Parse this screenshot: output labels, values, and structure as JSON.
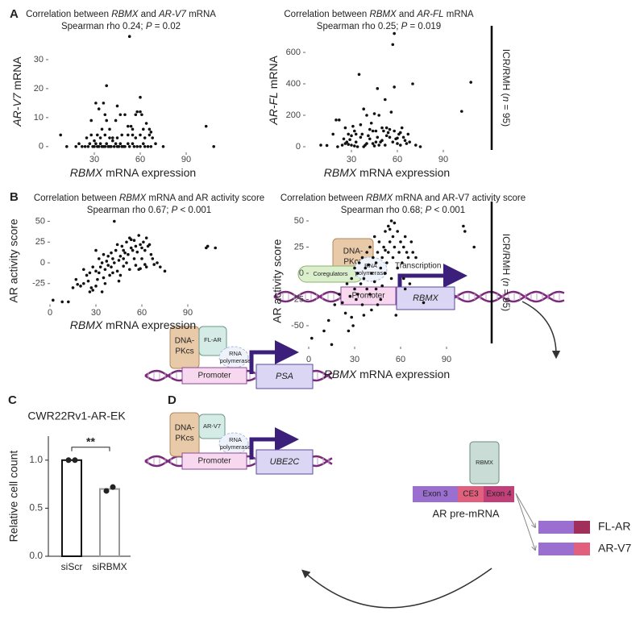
{
  "panel_labels": [
    "A",
    "B",
    "C",
    "D"
  ],
  "annotations": [
    {
      "text": "ICR/RMH (n = 95)",
      "italic": [
        "n"
      ]
    },
    {
      "text": "ICR/RMH (n = 95)",
      "italic": [
        "n"
      ]
    }
  ],
  "chart_data": [
    {
      "type": "scatter",
      "title": "Correlation between RBMX and AR-V7 mRNA",
      "title_italic": [
        "RBMX",
        "AR-V7"
      ],
      "subtitle": "Spearman rho 0.24; P = 0.02",
      "subtitle_italic": [
        "P"
      ],
      "xlabel": "RBMX mRNA expression",
      "xlabel_italic": [
        "RBMX"
      ],
      "ylabel": "AR-V7 mRNA",
      "ylabel_italic": [
        "AR-V7"
      ],
      "color": "#111111",
      "x": [
        8,
        12,
        18,
        20,
        22,
        24,
        26,
        27,
        29,
        30,
        31,
        32,
        33,
        34,
        35,
        36,
        37,
        38,
        39,
        40,
        41,
        42,
        43,
        44,
        45,
        46,
        47,
        48,
        49,
        50,
        52,
        53,
        55,
        56,
        58,
        60,
        62,
        63,
        65,
        67,
        70,
        75,
        108,
        103,
        25,
        28,
        30,
        32,
        34,
        37,
        40,
        42,
        45,
        48,
        52,
        55,
        57,
        60,
        63,
        66,
        68,
        31,
        33,
        36,
        38,
        37,
        44,
        45,
        50,
        52,
        54,
        57,
        58,
        60,
        61,
        62,
        64,
        66,
        35,
        28,
        38,
        47,
        60,
        55,
        40,
        67,
        53
      ],
      "values": [
        4,
        0,
        0,
        1,
        0,
        0,
        0,
        1,
        0,
        0,
        1,
        0,
        0,
        1,
        0,
        0,
        0,
        1,
        0,
        0,
        0,
        2,
        0,
        1,
        0,
        0,
        1,
        0,
        0,
        0,
        1,
        0,
        1,
        0,
        0,
        0,
        1,
        0,
        0,
        0,
        1,
        0,
        0,
        7,
        3,
        4,
        2,
        4,
        3,
        4,
        3,
        3,
        3,
        4,
        4,
        4,
        3,
        4,
        3,
        4,
        3,
        15,
        13,
        15,
        9,
        11,
        9,
        14,
        11,
        7,
        7,
        11,
        12,
        12,
        11,
        6,
        8,
        6,
        6,
        9,
        21,
        11,
        17,
        6,
        6,
        5,
        38
      ],
      "xlim": [
        0,
        110
      ],
      "ylim": [
        -2,
        40
      ],
      "xticks": [
        30,
        60,
        90
      ],
      "yticks": [
        0,
        10,
        20,
        30
      ]
    },
    {
      "type": "scatter",
      "title": "Correlation between RBMX and AR-FL mRNA",
      "title_italic": [
        "RBMX",
        "AR-FL"
      ],
      "subtitle": "Spearman rho 0.25; P = 0.019",
      "subtitle_italic": [
        "P"
      ],
      "xlabel": "RBMX mRNA expression",
      "xlabel_italic": [
        "RBMX"
      ],
      "ylabel": "AR-FL mRNA",
      "ylabel_italic": [
        "AR-FL"
      ],
      "color": "#111111",
      "x": [
        10,
        14,
        18,
        20,
        21,
        22,
        24,
        25,
        26,
        27,
        28,
        29,
        30,
        31,
        32,
        33,
        34,
        35,
        36,
        37,
        38,
        39,
        40,
        41,
        42,
        43,
        44,
        45,
        46,
        47,
        48,
        49,
        50,
        51,
        52,
        53,
        54,
        55,
        56,
        57,
        58,
        59,
        60,
        61,
        62,
        63,
        64,
        65,
        66,
        67,
        68,
        70,
        72,
        75,
        102,
        108,
        58,
        57,
        28,
        33,
        36,
        40,
        42,
        44,
        46,
        48,
        50,
        55,
        60,
        62,
        38,
        32,
        45,
        52,
        58,
        26,
        30,
        53,
        47
      ],
      "values": [
        10,
        8,
        80,
        170,
        0,
        170,
        10,
        50,
        20,
        30,
        15,
        45,
        70,
        130,
        100,
        30,
        0,
        460,
        60,
        80,
        240,
        10,
        200,
        70,
        50,
        150,
        20,
        210,
        100,
        60,
        10,
        30,
        40,
        100,
        300,
        70,
        90,
        60,
        220,
        30,
        100,
        50,
        20,
        80,
        10,
        120,
        60,
        40,
        20,
        80,
        30,
        400,
        10,
        0,
        225,
        410,
        720,
        650,
        80,
        80,
        140,
        20,
        110,
        100,
        30,
        200,
        120,
        110,
        55,
        90,
        0,
        5,
        5,
        10,
        380,
        120,
        10,
        120,
        370
      ],
      "xlim": [
        0,
        110
      ],
      "ylim": [
        -20,
        740
      ],
      "xticks": [
        30,
        60,
        90
      ],
      "yticks": [
        0,
        200,
        400,
        600
      ]
    },
    {
      "type": "scatter",
      "title": "Correlation between RBMX mRNA and AR activity score",
      "title_italic": [
        "RBMX"
      ],
      "subtitle": "Spearman rho 0.67; P < 0.001",
      "subtitle_italic": [
        "P"
      ],
      "xlabel": "RBMX mRNA expression",
      "xlabel_italic": [
        "RBMX"
      ],
      "ylabel": "AR activity score",
      "ylabel_italic": [],
      "color": "#111111",
      "x": [
        2,
        8,
        12,
        15,
        17,
        18,
        20,
        22,
        22,
        24,
        25,
        26,
        27,
        28,
        28,
        30,
        30,
        31,
        32,
        32,
        33,
        34,
        35,
        35,
        36,
        37,
        38,
        38,
        39,
        40,
        40,
        41,
        42,
        42,
        43,
        44,
        44,
        45,
        46,
        46,
        47,
        48,
        48,
        49,
        50,
        50,
        51,
        52,
        52,
        53,
        54,
        55,
        55,
        56,
        57,
        58,
        58,
        59,
        60,
        60,
        61,
        62,
        63,
        63,
        64,
        65,
        66,
        67,
        68,
        70,
        72,
        75,
        102,
        103,
        108,
        62,
        56,
        36,
        30,
        26,
        45,
        53,
        59,
        41,
        34,
        48
      ],
      "values": [
        -45,
        -47,
        -47,
        -30,
        -20,
        -26,
        -28,
        -25,
        -8,
        -15,
        -22,
        -35,
        -30,
        -5,
        -33,
        15,
        -10,
        -20,
        5,
        -12,
        -5,
        0,
        -18,
        10,
        -8,
        2,
        8,
        -3,
        -15,
        12,
        -5,
        5,
        50,
        0,
        15,
        -10,
        22,
        3,
        8,
        -15,
        20,
        -4,
        5,
        12,
        0,
        25,
        10,
        -8,
        30,
        18,
        15,
        5,
        27,
        20,
        13,
        -8,
        33,
        22,
        18,
        5,
        25,
        15,
        30,
        -5,
        20,
        22,
        10,
        5,
        -2,
        0,
        -5,
        -10,
        18,
        20,
        18,
        -2,
        -3,
        -25,
        -28,
        -12,
        -22,
        28,
        -7,
        -12,
        -35,
        15
      ],
      "xlim": [
        0,
        110
      ],
      "ylim": [
        -50,
        55
      ],
      "xticks": [
        0,
        30,
        60,
        90
      ],
      "yticks": [
        -25,
        0,
        25,
        50
      ]
    },
    {
      "type": "scatter",
      "title": "Correlation between RBMX mRNA and AR-V7 activity score",
      "title_italic": [
        "RBMX"
      ],
      "subtitle": "Spearman rho 0.68; P < 0.001",
      "subtitle_italic": [
        "P"
      ],
      "xlabel": "RBMX mRNA expression",
      "xlabel_italic": [
        "RBMX"
      ],
      "ylabel": "AR activity score",
      "ylabel_italic": [],
      "color": "#111111",
      "x": [
        2,
        10,
        13,
        15,
        17,
        20,
        22,
        24,
        25,
        26,
        27,
        28,
        28,
        30,
        30,
        31,
        32,
        33,
        34,
        35,
        35,
        36,
        37,
        38,
        38,
        39,
        40,
        40,
        41,
        42,
        43,
        43,
        44,
        45,
        45,
        46,
        47,
        48,
        48,
        49,
        50,
        50,
        51,
        52,
        52,
        53,
        54,
        54,
        55,
        55,
        56,
        57,
        58,
        58,
        59,
        60,
        61,
        62,
        63,
        63,
        64,
        65,
        66,
        67,
        68,
        70,
        75,
        101,
        102,
        108,
        56,
        62,
        44,
        36,
        32,
        47,
        53,
        41,
        29,
        50
      ],
      "values": [
        -62,
        -55,
        -45,
        -68,
        -30,
        -20,
        -28,
        -38,
        -10,
        -55,
        -22,
        -5,
        -42,
        -15,
        5,
        -25,
        0,
        10,
        -10,
        -30,
        15,
        -5,
        5,
        20,
        -15,
        8,
        25,
        -20,
        0,
        15,
        35,
        -8,
        10,
        20,
        -30,
        30,
        5,
        15,
        -12,
        25,
        40,
        0,
        10,
        45,
        20,
        30,
        50,
        -5,
        15,
        35,
        25,
        -40,
        5,
        40,
        20,
        30,
        10,
        25,
        35,
        -15,
        20,
        15,
        -10,
        30,
        20,
        15,
        -28,
        45,
        40,
        25,
        48,
        -5,
        -15,
        -40,
        -20,
        -25,
        42,
        -35,
        -50,
        22
      ],
      "xlim": [
        0,
        110
      ],
      "ylim": [
        -70,
        55
      ],
      "xticks": [
        0,
        30,
        60,
        90
      ],
      "yticks": [
        -50,
        -25,
        0,
        25,
        50
      ]
    },
    {
      "type": "bar",
      "title": "CWR22Rv1-AR-EK",
      "ylabel": "Relative cell count",
      "categories": [
        "siScr",
        "siRBMX"
      ],
      "values": [
        1.0,
        0.7
      ],
      "points": [
        [
          1.0,
          1.0
        ],
        [
          0.68,
          0.72
        ]
      ],
      "colors": [
        "#111111",
        "#999999"
      ],
      "significance": "**",
      "ylim": [
        0,
        1.25
      ],
      "yticks": [
        {
          "value": 0,
          "label": "0.0"
        },
        {
          "value": 0.5,
          "label": "0.5"
        },
        {
          "value": 1,
          "label": "1.0"
        }
      ]
    }
  ],
  "diagram": {
    "rbmx_locus": {
      "dna_pkcs": [
        "DNA-",
        "PKcs"
      ],
      "coregulators": "Coregulators",
      "rna_pol": [
        "RNA",
        "polymerase"
      ],
      "transcription": "Transcription",
      "promoter": "Promoter",
      "gene": "RBMX"
    },
    "psa_locus": {
      "dna_pkcs": [
        "DNA-",
        "PKcs"
      ],
      "receptor": "FL-AR",
      "rna_pol": [
        "RNA",
        "polymerase"
      ],
      "promoter": "Promoter",
      "gene": "PSA"
    },
    "ube2c_locus": {
      "dna_pkcs": [
        "DNA-",
        "PKcs"
      ],
      "receptor": "AR-V7",
      "rna_pol": [
        "RNA",
        "polymerase"
      ],
      "promoter": "Promoter",
      "gene": "UBE2C"
    },
    "splicing": {
      "factor": "RBMX",
      "exons": [
        "Exon 3",
        "CE3",
        "Exon 4"
      ],
      "label": "AR pre-mRNA",
      "products": [
        "FL-AR",
        "AR-V7"
      ]
    }
  }
}
